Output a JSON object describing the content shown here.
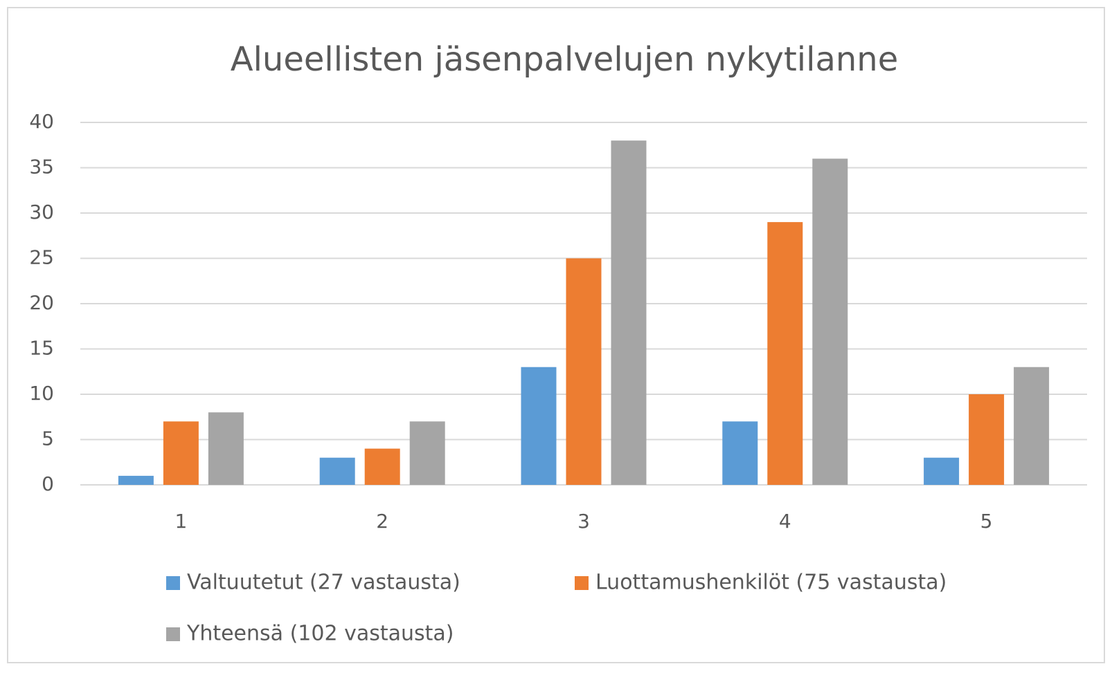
{
  "chart_data": {
    "type": "bar",
    "title": "Alueellisten jäsenpalvelujen nykytilanne",
    "categories": [
      "1",
      "2",
      "3",
      "4",
      "5"
    ],
    "series": [
      {
        "name": "Valtuutetut (27 vastausta)",
        "color": "#5b9bd5",
        "values": [
          1,
          3,
          13,
          7,
          3
        ]
      },
      {
        "name": "Luottamushenkilöt (75 vastausta)",
        "color": "#ed7d31",
        "values": [
          7,
          4,
          25,
          29,
          10
        ]
      },
      {
        "name": "Yhteensä (102 vastausta)",
        "color": "#a5a5a5",
        "values": [
          8,
          7,
          38,
          36,
          13
        ]
      }
    ],
    "ylim": [
      0,
      40
    ],
    "yticks": [
      0,
      5,
      10,
      15,
      20,
      25,
      30,
      35,
      40
    ],
    "grid": true,
    "legend": "bottom"
  }
}
